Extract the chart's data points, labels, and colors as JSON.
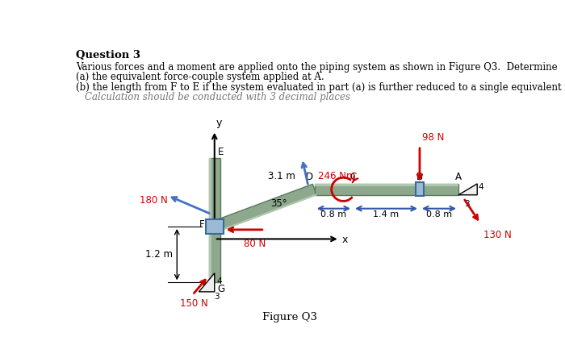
{
  "title_text": "Question 3",
  "line1": "Various forces and a moment are applied onto the piping system as shown in Figure Q3.  Determine",
  "line2": "(a) the equivalent force-couple system applied at A.",
  "line3": "(b) the length from F to E if the system evaluated in part (a) is further reduced to a single equivalent force at E",
  "line4": "Calculation should be conducted with 3 decimal places",
  "figure_caption": "Figure Q3",
  "bg_color": "#ffffff",
  "text_color": "#000000",
  "red_color": "#cc0000",
  "blue_arrow_color": "#4472c4",
  "dim_arrow_color": "#3355aa",
  "pipe_fill": "#8da88d",
  "pipe_light": "#b0c8b0",
  "pipe_edge": "#5a7a5a",
  "joint_fill": "#9bbbd4",
  "joint_edge": "#3a6a9a",
  "gray_text": "#777777"
}
